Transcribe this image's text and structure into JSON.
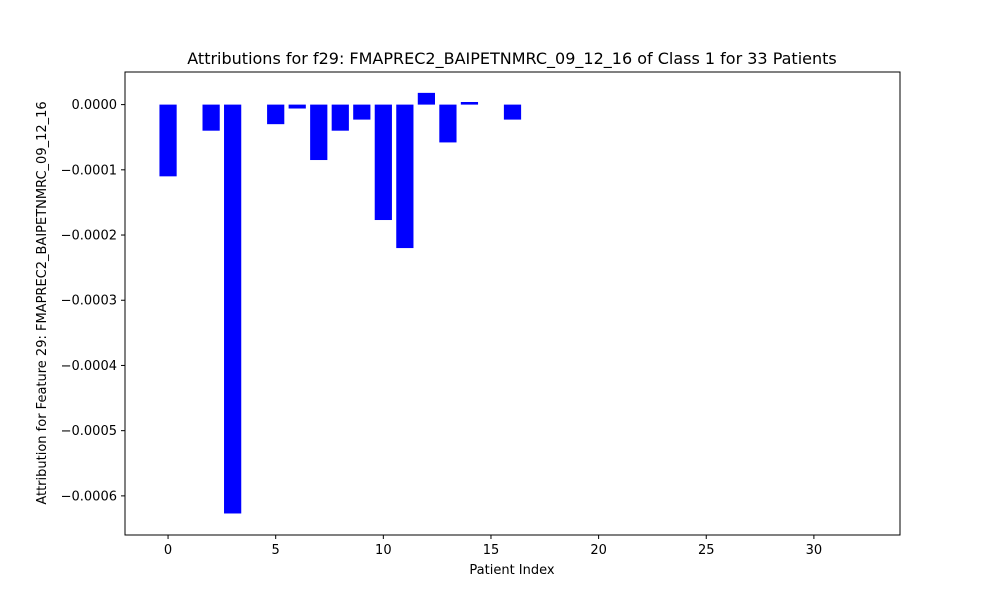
{
  "chart_data": {
    "type": "bar",
    "title": "Attributions for f29: FMAPREC2_BAIPETNMRC_09_12_16 of Class 1 for 33 Patients",
    "xlabel": "Patient Index",
    "ylabel": "Attribution for Feature 29: FMAPREC2_BAIPETNMRC_09_12_16",
    "xlim": [
      -2,
      34
    ],
    "ylim": [
      -0.00066,
      5e-05
    ],
    "x_ticks": [
      0,
      5,
      10,
      15,
      20,
      25,
      30
    ],
    "x_tick_labels": [
      "0",
      "5",
      "10",
      "15",
      "20",
      "25",
      "30"
    ],
    "y_ticks": [
      0.0,
      -0.0001,
      -0.0002,
      -0.0003,
      -0.0004,
      -0.0005,
      -0.0006
    ],
    "y_tick_labels": [
      "0.0000",
      "−0.0001",
      "−0.0002",
      "−0.0003",
      "−0.0004",
      "−0.0005",
      "−0.0006"
    ],
    "bar_color": "#0000ff",
    "grid": false,
    "x": [
      0,
      1,
      2,
      3,
      4,
      5,
      6,
      7,
      8,
      9,
      10,
      11,
      12,
      13,
      14,
      15,
      16,
      17,
      18,
      19,
      20,
      21,
      22,
      23,
      24,
      25,
      26,
      27,
      28,
      29,
      30,
      31,
      32
    ],
    "values": [
      -0.00011,
      0.0,
      -4e-05,
      -0.000627,
      0.0,
      -3e-05,
      -6e-06,
      -8.5e-05,
      -4e-05,
      -2.3e-05,
      -0.000177,
      -0.00022,
      1.8e-05,
      -5.8e-05,
      4e-06,
      0.0,
      -2.3e-05,
      0.0,
      0.0,
      0.0,
      0.0,
      0.0,
      0.0,
      0.0,
      0.0,
      0.0,
      0.0,
      0.0,
      0.0,
      0.0,
      0.0,
      0.0,
      0.0
    ]
  }
}
